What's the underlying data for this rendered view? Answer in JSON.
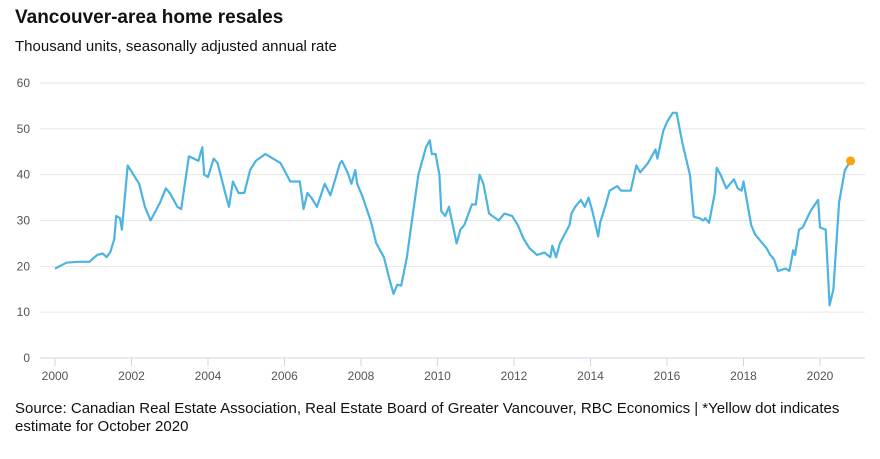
{
  "chart_data": {
    "type": "line",
    "title": "Vancouver-area home resales",
    "subtitle": "Thousand units, seasonally adjusted annual rate",
    "xlabel": "",
    "ylabel": "",
    "xlim": [
      2000,
      2021
    ],
    "ylim": [
      0,
      60
    ],
    "grid": true,
    "y_ticks": [
      0,
      10,
      20,
      30,
      40,
      50,
      60
    ],
    "x_ticks": [
      2000,
      2002,
      2004,
      2006,
      2008,
      2010,
      2012,
      2014,
      2016,
      2018,
      2020
    ],
    "series": [
      {
        "name": "Home resales",
        "color": "#4db3e0",
        "points": [
          [
            2000.0,
            19.5
          ],
          [
            2000.3,
            20.8
          ],
          [
            2000.6,
            21
          ],
          [
            2000.9,
            21
          ],
          [
            2001.1,
            22.5
          ],
          [
            2001.25,
            22.8
          ],
          [
            2001.35,
            22
          ],
          [
            2001.45,
            23.2
          ],
          [
            2001.55,
            26
          ],
          [
            2001.6,
            31
          ],
          [
            2001.7,
            30.5
          ],
          [
            2001.75,
            28
          ],
          [
            2001.9,
            42
          ],
          [
            2002.2,
            38
          ],
          [
            2002.35,
            33
          ],
          [
            2002.5,
            30
          ],
          [
            2002.75,
            34
          ],
          [
            2002.9,
            37
          ],
          [
            2003.0,
            36
          ],
          [
            2003.2,
            33
          ],
          [
            2003.3,
            32.5
          ],
          [
            2003.5,
            44
          ],
          [
            2003.75,
            43
          ],
          [
            2003.85,
            46
          ],
          [
            2003.9,
            40
          ],
          [
            2004.0,
            39.5
          ],
          [
            2004.15,
            43.5
          ],
          [
            2004.25,
            42.5
          ],
          [
            2004.45,
            36
          ],
          [
            2004.55,
            33
          ],
          [
            2004.65,
            38.5
          ],
          [
            2004.8,
            36
          ],
          [
            2004.95,
            36
          ],
          [
            2005.1,
            41
          ],
          [
            2005.25,
            43
          ],
          [
            2005.5,
            44.5
          ],
          [
            2005.6,
            44
          ],
          [
            2005.9,
            42.5
          ],
          [
            2006.15,
            38.5
          ],
          [
            2006.4,
            38.5
          ],
          [
            2006.5,
            32.5
          ],
          [
            2006.6,
            36
          ],
          [
            2006.7,
            35
          ],
          [
            2006.85,
            33
          ],
          [
            2007.05,
            38
          ],
          [
            2007.2,
            35.5
          ],
          [
            2007.45,
            42.5
          ],
          [
            2007.5,
            43
          ],
          [
            2007.65,
            40.5
          ],
          [
            2007.75,
            38
          ],
          [
            2007.85,
            41
          ],
          [
            2007.9,
            38
          ],
          [
            2008.05,
            35
          ],
          [
            2008.25,
            30
          ],
          [
            2008.4,
            25
          ],
          [
            2008.6,
            22
          ],
          [
            2008.75,
            17
          ],
          [
            2008.85,
            14
          ],
          [
            2008.95,
            16
          ],
          [
            2009.05,
            15.8
          ],
          [
            2009.2,
            22
          ],
          [
            2009.35,
            31
          ],
          [
            2009.5,
            40
          ],
          [
            2009.7,
            46
          ],
          [
            2009.8,
            47.5
          ],
          [
            2009.85,
            44.5
          ],
          [
            2009.95,
            44.5
          ],
          [
            2010.05,
            40
          ],
          [
            2010.1,
            32
          ],
          [
            2010.2,
            31
          ],
          [
            2010.3,
            33
          ],
          [
            2010.5,
            25
          ],
          [
            2010.6,
            28
          ],
          [
            2010.7,
            29
          ],
          [
            2010.9,
            33.5
          ],
          [
            2011.0,
            33.5
          ],
          [
            2011.1,
            40
          ],
          [
            2011.2,
            38
          ],
          [
            2011.35,
            31.5
          ],
          [
            2011.6,
            30
          ],
          [
            2011.75,
            31.5
          ],
          [
            2011.95,
            31
          ],
          [
            2012.1,
            29
          ],
          [
            2012.25,
            26
          ],
          [
            2012.4,
            24
          ],
          [
            2012.6,
            22.5
          ],
          [
            2012.8,
            23
          ],
          [
            2012.95,
            22
          ],
          [
            2013.0,
            24.5
          ],
          [
            2013.1,
            22
          ],
          [
            2013.2,
            25
          ],
          [
            2013.45,
            29
          ],
          [
            2013.5,
            31.5
          ],
          [
            2013.6,
            33
          ],
          [
            2013.75,
            34.5
          ],
          [
            2013.85,
            33
          ],
          [
            2013.95,
            35
          ],
          [
            2014.05,
            32
          ],
          [
            2014.2,
            26.5
          ],
          [
            2014.25,
            29.5
          ],
          [
            2014.4,
            33.5
          ],
          [
            2014.5,
            36.5
          ],
          [
            2014.7,
            37.5
          ],
          [
            2014.8,
            36.5
          ],
          [
            2015.05,
            36.5
          ],
          [
            2015.2,
            42
          ],
          [
            2015.3,
            40.5
          ],
          [
            2015.5,
            42.5
          ],
          [
            2015.7,
            45.5
          ],
          [
            2015.75,
            43.5
          ],
          [
            2015.9,
            49.5
          ],
          [
            2016.0,
            51.5
          ],
          [
            2016.15,
            53.5
          ],
          [
            2016.25,
            53.5
          ],
          [
            2016.4,
            47
          ],
          [
            2016.6,
            40
          ],
          [
            2016.7,
            30.8
          ],
          [
            2016.85,
            30.5
          ],
          [
            2016.95,
            30
          ],
          [
            2017.0,
            30.5
          ],
          [
            2017.1,
            29.5
          ],
          [
            2017.25,
            36
          ],
          [
            2017.3,
            41.5
          ],
          [
            2017.4,
            40
          ],
          [
            2017.55,
            37
          ],
          [
            2017.65,
            38
          ],
          [
            2017.75,
            39
          ],
          [
            2017.85,
            37
          ],
          [
            2017.95,
            36.5
          ],
          [
            2018.0,
            38.5
          ],
          [
            2018.2,
            29
          ],
          [
            2018.3,
            27
          ],
          [
            2018.6,
            24
          ],
          [
            2018.7,
            22.5
          ],
          [
            2018.8,
            21.5
          ],
          [
            2018.9,
            19
          ],
          [
            2019.1,
            19.5
          ],
          [
            2019.2,
            19
          ],
          [
            2019.3,
            23.5
          ],
          [
            2019.35,
            22.5
          ],
          [
            2019.45,
            28
          ],
          [
            2019.55,
            28.5
          ],
          [
            2019.75,
            32
          ],
          [
            2019.95,
            34.5
          ],
          [
            2020.0,
            28.5
          ],
          [
            2020.15,
            28
          ],
          [
            2020.25,
            11.5
          ],
          [
            2020.35,
            15
          ],
          [
            2020.5,
            34
          ],
          [
            2020.65,
            41
          ],
          [
            2020.8,
            43
          ]
        ]
      }
    ],
    "annotations": [
      {
        "label": "Estimate for October 2020",
        "x": 2020.8,
        "y": 43,
        "color": "#f5a30f"
      }
    ],
    "source": "Source: Canadian Real Estate Association, Real Estate Board of Greater Vancouver, RBC Economics | *Yellow dot indicates estimate for October 2020"
  }
}
